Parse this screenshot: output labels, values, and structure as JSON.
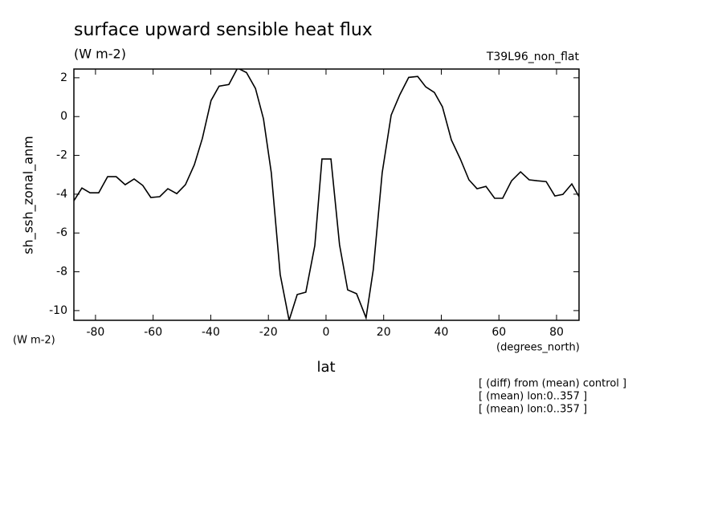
{
  "chart_data": {
    "type": "line",
    "title": "surface upward sensible heat flux",
    "subtitle": "(W m-2)",
    "run_label": "T39L96_non_flat",
    "y_label": "sh_ssh_zonal_anm",
    "y_units": "(W m-2)",
    "x_units": "(degrees_north)",
    "x_label": "lat",
    "notes": [
      "[ (diff) from (mean) control ]",
      "[ (mean) lon:0..357 ]",
      "[ (mean) lon:0..357 ]"
    ],
    "color": "#000000",
    "x": [
      -87.5,
      -84.7,
      -81.9,
      -78.9,
      -75.8,
      -72.8,
      -69.7,
      -66.6,
      -63.6,
      -60.8,
      -57.7,
      -54.9,
      -51.8,
      -48.8,
      -45.7,
      -42.9,
      -39.9,
      -37.1,
      -33.7,
      -30.7,
      -27.6,
      -24.5,
      -21.7,
      -19.0,
      -15.9,
      -12.8,
      -10.0,
      -7.0,
      -3.9,
      -1.4,
      1.7,
      4.7,
      7.5,
      10.6,
      13.9,
      16.4,
      19.5,
      22.6,
      25.6,
      28.7,
      31.8,
      34.6,
      37.6,
      40.4,
      43.5,
      46.6,
      49.6,
      52.4,
      55.5,
      58.5,
      61.3,
      64.4,
      67.5,
      70.5,
      73.3,
      76.4,
      79.4,
      82.2,
      85.3,
      87.8
    ],
    "values": [
      -4.34,
      -3.68,
      -3.93,
      -3.93,
      -3.1,
      -3.1,
      -3.51,
      -3.22,
      -3.55,
      -4.17,
      -4.13,
      -3.72,
      -3.97,
      -3.51,
      -2.48,
      -1.12,
      0.83,
      1.57,
      1.65,
      2.5,
      2.27,
      1.45,
      -0.12,
      -2.89,
      -8.14,
      -10.5,
      -9.17,
      -9.05,
      -6.65,
      -2.19,
      -2.19,
      -6.61,
      -8.93,
      -9.13,
      -10.37,
      -7.89,
      -2.89,
      0.08,
      1.12,
      2.02,
      2.07,
      1.53,
      1.24,
      0.5,
      -1.2,
      -2.19,
      -3.26,
      -3.72,
      -3.6,
      -4.21,
      -4.21,
      -3.31,
      -2.85,
      -3.26,
      -3.31,
      -3.35,
      -4.09,
      -4.01,
      -3.47,
      -4.13
    ],
    "xlim": [
      -87.5,
      87.8
    ],
    "ylim": [
      -10.5,
      2.45
    ],
    "xticks": [
      -80,
      -60,
      -40,
      -20,
      0,
      20,
      40,
      60,
      80
    ],
    "yticks": [
      -10,
      -8,
      -6,
      -4,
      -2,
      0,
      2
    ]
  }
}
